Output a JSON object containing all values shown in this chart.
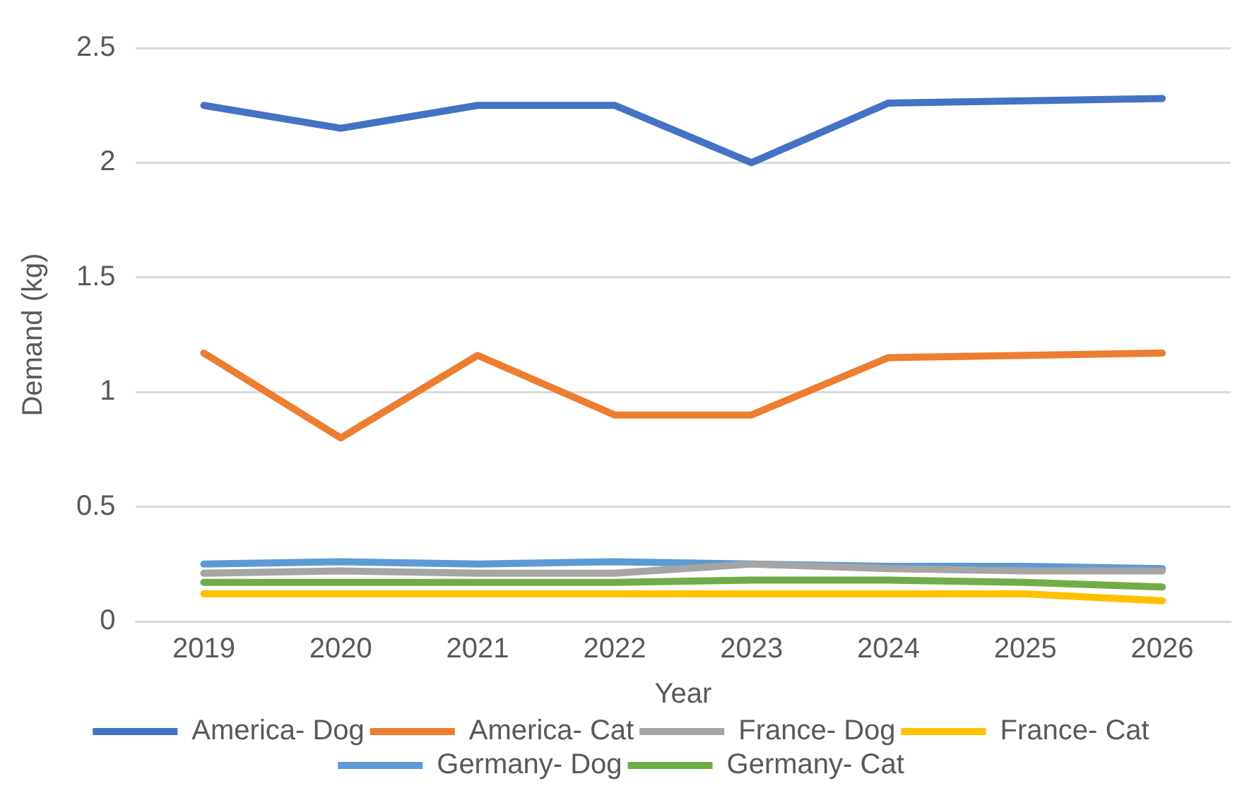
{
  "chart_data": {
    "type": "line",
    "xlabel": "Year",
    "ylabel": "Demand (kg)",
    "categories": [
      "2019",
      "2020",
      "2021",
      "2022",
      "2023",
      "2024",
      "2025",
      "2026"
    ],
    "series": [
      {
        "name": "America- Dog",
        "color": "#4472c4",
        "values": [
          2.25,
          2.15,
          2.25,
          2.25,
          2.0,
          2.26,
          2.27,
          2.28
        ]
      },
      {
        "name": "America- Cat",
        "color": "#ed7d31",
        "values": [
          1.17,
          0.8,
          1.16,
          0.9,
          0.9,
          1.15,
          1.16,
          1.17
        ]
      },
      {
        "name": "France- Dog",
        "color": "#a5a5a5",
        "values": [
          0.21,
          0.22,
          0.21,
          0.21,
          0.25,
          0.23,
          0.22,
          0.22
        ]
      },
      {
        "name": "France- Cat",
        "color": "#ffc000",
        "values": [
          0.12,
          0.12,
          0.12,
          0.12,
          0.12,
          0.12,
          0.12,
          0.09
        ]
      },
      {
        "name": "Germany- Dog",
        "color": "#5b9bd5",
        "values": [
          0.25,
          0.26,
          0.25,
          0.26,
          0.25,
          0.24,
          0.24,
          0.23
        ]
      },
      {
        "name": "Germany- Cat",
        "color": "#70ad47",
        "values": [
          0.17,
          0.17,
          0.17,
          0.17,
          0.18,
          0.18,
          0.17,
          0.15
        ]
      }
    ],
    "ylim": [
      0,
      2.5
    ],
    "yticks": [
      0,
      0.5,
      1,
      1.5,
      2,
      2.5
    ],
    "grid": "y",
    "legend": "bottom",
    "marker": "none",
    "line_style": "solid"
  }
}
